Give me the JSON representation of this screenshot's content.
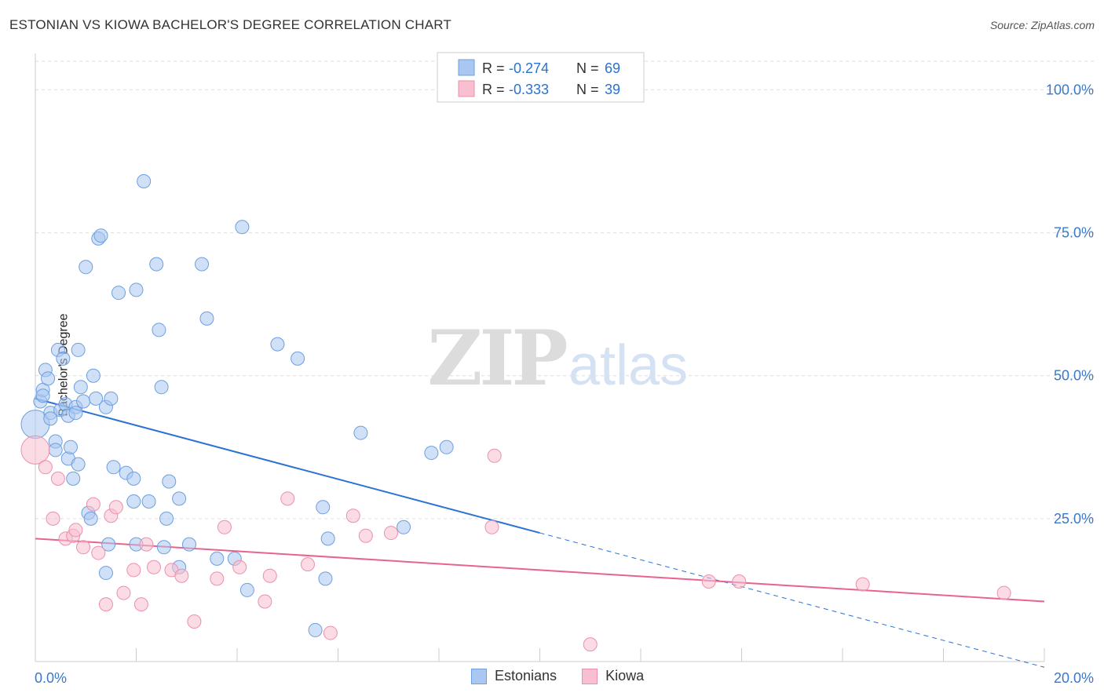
{
  "title": "ESTONIAN VS KIOWA BACHELOR'S DEGREE CORRELATION CHART",
  "source": "Source: ZipAtlas.com",
  "watermark": {
    "zip": "ZIP",
    "atlas": "atlas"
  },
  "colors": {
    "estonians_fill": "#a9c7f0",
    "estonians_stroke": "#6d9fdf",
    "estonians_line": "#2a72d4",
    "kiowa_fill": "#f7bfd0",
    "kiowa_stroke": "#ec8fad",
    "kiowa_line": "#e8638e",
    "tick_label": "#3b78c9",
    "grid": "#dddddd"
  },
  "legend": {
    "rows": [
      {
        "r_label": "R =",
        "r_value": "-0.274",
        "n_label": "N =",
        "n_value": "69"
      },
      {
        "r_label": "R =",
        "r_value": "-0.333",
        "n_label": "N =",
        "n_value": "39"
      }
    ]
  },
  "bottom_legend": {
    "estonians": "Estonians",
    "kiowa": "Kiowa"
  },
  "chart_data": {
    "type": "scatter",
    "title": "ESTONIAN VS KIOWA BACHELOR'S DEGREE CORRELATION CHART",
    "xlabel": "",
    "ylabel": "Bachelor's Degree",
    "xlim": [
      0,
      20
    ],
    "ylim": [
      0,
      105
    ],
    "x_tick_labels": [
      {
        "value": 0,
        "label": "0.0%"
      },
      {
        "value": 20,
        "label": "20.0%"
      }
    ],
    "y_tick_labels": [
      {
        "value": 25,
        "label": "25.0%"
      },
      {
        "value": 50,
        "label": "50.0%"
      },
      {
        "value": 75,
        "label": "75.0%"
      },
      {
        "value": 100,
        "label": "100.0%"
      }
    ],
    "grid": true,
    "legend_position": "top-center",
    "series": [
      {
        "name": "Estonians",
        "points": [
          [
            0.0,
            41.5
          ],
          [
            0.1,
            45.5
          ],
          [
            0.15,
            47.5
          ],
          [
            0.15,
            46.5
          ],
          [
            0.2,
            51
          ],
          [
            0.25,
            49.5
          ],
          [
            0.3,
            43.5
          ],
          [
            0.3,
            42.5
          ],
          [
            0.4,
            38.5
          ],
          [
            0.4,
            37
          ],
          [
            0.45,
            54.5
          ],
          [
            0.5,
            44
          ],
          [
            0.55,
            53
          ],
          [
            0.6,
            45
          ],
          [
            0.65,
            43
          ],
          [
            0.65,
            35.5
          ],
          [
            0.7,
            37.5
          ],
          [
            0.75,
            32
          ],
          [
            0.8,
            44.5
          ],
          [
            0.8,
            43.5
          ],
          [
            0.85,
            54.5
          ],
          [
            0.85,
            34.5
          ],
          [
            0.9,
            48
          ],
          [
            0.95,
            45.5
          ],
          [
            1.0,
            69
          ],
          [
            1.05,
            26
          ],
          [
            1.1,
            25
          ],
          [
            1.15,
            50
          ],
          [
            1.2,
            46
          ],
          [
            1.25,
            74
          ],
          [
            1.3,
            74.5
          ],
          [
            1.4,
            44.5
          ],
          [
            1.5,
            46
          ],
          [
            1.55,
            34
          ],
          [
            1.45,
            20.5
          ],
          [
            1.4,
            15.5
          ],
          [
            1.65,
            64.5
          ],
          [
            1.8,
            33
          ],
          [
            1.95,
            32
          ],
          [
            1.95,
            28
          ],
          [
            2.0,
            65
          ],
          [
            2.0,
            20.5
          ],
          [
            2.15,
            84
          ],
          [
            2.25,
            28
          ],
          [
            2.4,
            69.5
          ],
          [
            2.45,
            58
          ],
          [
            2.5,
            48
          ],
          [
            2.55,
            20
          ],
          [
            2.6,
            25
          ],
          [
            2.65,
            31.5
          ],
          [
            2.85,
            16.5
          ],
          [
            2.85,
            28.5
          ],
          [
            3.05,
            20.5
          ],
          [
            3.3,
            69.5
          ],
          [
            3.4,
            60
          ],
          [
            3.6,
            18
          ],
          [
            3.95,
            18
          ],
          [
            4.1,
            76
          ],
          [
            4.2,
            12.5
          ],
          [
            4.8,
            55.5
          ],
          [
            5.2,
            53
          ],
          [
            5.55,
            5.5
          ],
          [
            5.75,
            14.5
          ],
          [
            5.7,
            27
          ],
          [
            5.8,
            21.5
          ],
          [
            6.45,
            40
          ],
          [
            7.3,
            23.5
          ],
          [
            7.85,
            36.5
          ],
          [
            8.15,
            37.5
          ]
        ],
        "trend": {
          "x": [
            0,
            10
          ],
          "y": [
            46,
            22.5
          ]
        },
        "trend_extension": {
          "x": [
            10,
            20
          ],
          "y": [
            22.5,
            -1
          ]
        }
      },
      {
        "name": "Kiowa",
        "points": [
          [
            0.0,
            37
          ],
          [
            0.2,
            34
          ],
          [
            0.35,
            25
          ],
          [
            0.45,
            32
          ],
          [
            0.6,
            21.5
          ],
          [
            0.75,
            22
          ],
          [
            0.8,
            23
          ],
          [
            0.95,
            20
          ],
          [
            1.15,
            27.5
          ],
          [
            1.25,
            19
          ],
          [
            1.4,
            10
          ],
          [
            1.5,
            25.5
          ],
          [
            1.6,
            27
          ],
          [
            1.75,
            12
          ],
          [
            1.95,
            16
          ],
          [
            2.1,
            10
          ],
          [
            2.2,
            20.5
          ],
          [
            2.35,
            16.5
          ],
          [
            2.7,
            16
          ],
          [
            2.9,
            15
          ],
          [
            3.15,
            7
          ],
          [
            3.6,
            14.5
          ],
          [
            3.75,
            23.5
          ],
          [
            4.05,
            16.5
          ],
          [
            4.55,
            10.5
          ],
          [
            4.65,
            15
          ],
          [
            5.0,
            28.5
          ],
          [
            5.4,
            17
          ],
          [
            5.85,
            5
          ],
          [
            6.3,
            25.5
          ],
          [
            6.55,
            22
          ],
          [
            7.05,
            22.5
          ],
          [
            9.05,
            23.5
          ],
          [
            9.1,
            36
          ],
          [
            11.0,
            3
          ],
          [
            13.35,
            14
          ],
          [
            13.95,
            14
          ],
          [
            16.4,
            13.5
          ],
          [
            19.2,
            12
          ]
        ],
        "trend": {
          "x": [
            0,
            20
          ],
          "y": [
            21.5,
            10.5
          ]
        }
      }
    ]
  }
}
